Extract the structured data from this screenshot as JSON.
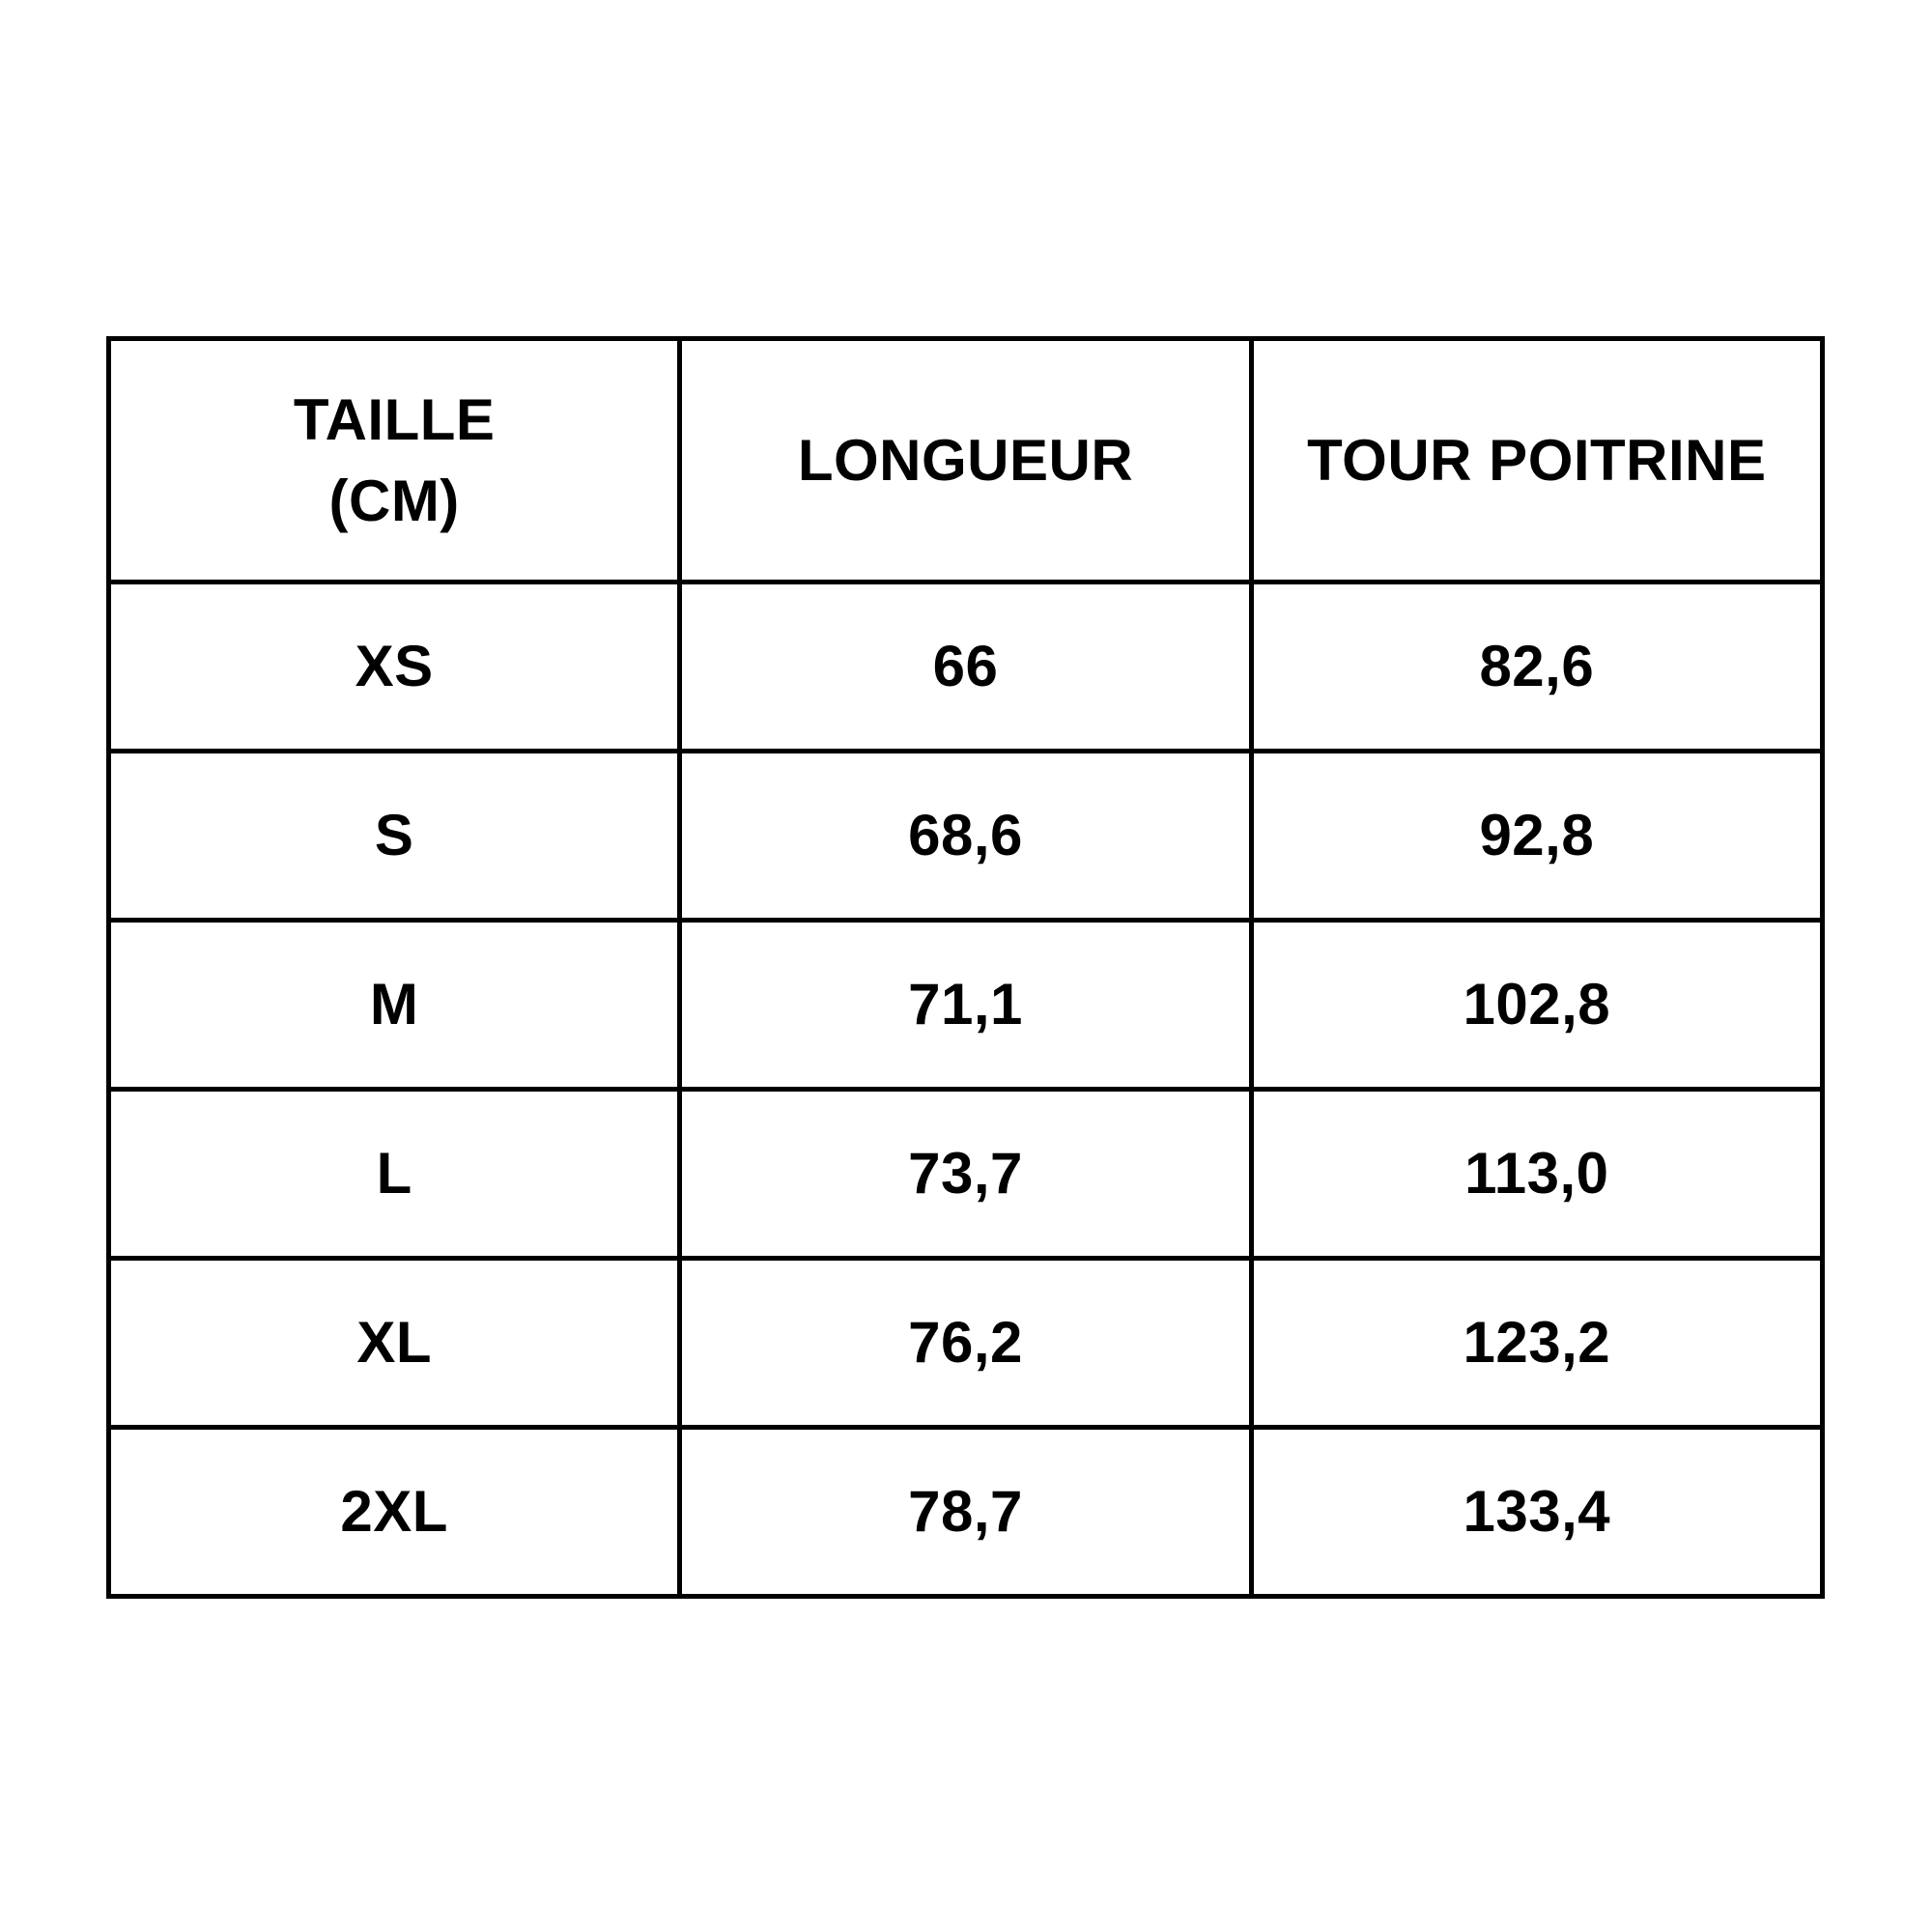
{
  "page": {
    "background_color": "#ffffff",
    "text_color": "#000000",
    "border_color": "#000000"
  },
  "table": {
    "headers": {
      "size": "TAILLE\n(CM)",
      "length": "LONGUEUR",
      "chest": "TOUR POITRINE"
    },
    "rows": [
      {
        "size": "XS",
        "length": "66",
        "chest": "82,6"
      },
      {
        "size": "S",
        "length": "68,6",
        "chest": "92,8"
      },
      {
        "size": "M",
        "length": "71,1",
        "chest": "102,8"
      },
      {
        "size": "L",
        "length": "73,7",
        "chest": "113,0"
      },
      {
        "size": "XL",
        "length": "76,2",
        "chest": "123,2"
      },
      {
        "size": "2XL",
        "length": "78,7",
        "chest": "133,4"
      }
    ]
  },
  "chart_data": {
    "type": "table",
    "title": "",
    "columns": [
      "TAILLE (CM)",
      "LONGUEUR",
      "TOUR POITRINE"
    ],
    "rows": [
      [
        "XS",
        "66",
        "82,6"
      ],
      [
        "S",
        "68,6",
        "92,8"
      ],
      [
        "M",
        "71,1",
        "102,8"
      ],
      [
        "L",
        "73,7",
        "113,0"
      ],
      [
        "XL",
        "76,2",
        "123,2"
      ],
      [
        "2XL",
        "78,7",
        "133,4"
      ]
    ],
    "units": "cm",
    "layout_hints": {
      "columns_equal_width": true,
      "grid": "all-borders",
      "text_style": "bold-black-centered",
      "background": "#ffffff"
    }
  }
}
